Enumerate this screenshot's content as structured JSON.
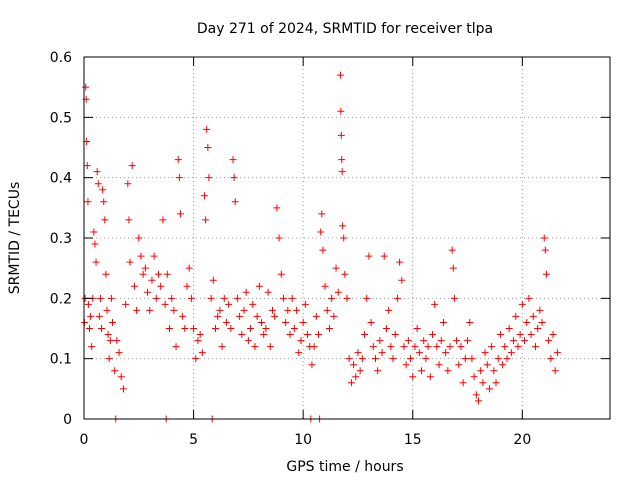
{
  "chart_data": {
    "type": "scatter",
    "title": "Day 271 of 2024, SRMTID for receiver tlpa",
    "xlabel": "GPS time / hours",
    "ylabel": "SRMTID / TECUs",
    "xlim": [
      0,
      24
    ],
    "ylim": [
      0,
      0.6
    ],
    "xticks": [
      0,
      5,
      10,
      15,
      20
    ],
    "xtick_labels": [
      "0",
      "5",
      "10",
      "15",
      "20"
    ],
    "yticks": [
      0,
      0.1,
      0.2,
      0.3,
      0.4,
      0.5,
      0.6
    ],
    "ytick_labels": [
      "0",
      "0.1",
      "0.2",
      "0.3",
      "0.4",
      "0.5",
      "0.6"
    ],
    "grid": true,
    "marker": "+",
    "color": "#ff0000",
    "series": [
      {
        "name": "SRMTID",
        "points": [
          [
            0.02,
            0.16
          ],
          [
            0.05,
            0.2
          ],
          [
            0.08,
            0.55
          ],
          [
            0.1,
            0.53
          ],
          [
            0.12,
            0.46
          ],
          [
            0.15,
            0.42
          ],
          [
            0.18,
            0.36
          ],
          [
            0.2,
            0.19
          ],
          [
            0.25,
            0.15
          ],
          [
            0.3,
            0.17
          ],
          [
            0.35,
            0.12
          ],
          [
            0.4,
            0.2
          ],
          [
            0.45,
            0.31
          ],
          [
            0.5,
            0.29
          ],
          [
            0.55,
            0.26
          ],
          [
            0.6,
            0.41
          ],
          [
            0.65,
            0.39
          ],
          [
            0.7,
            0.17
          ],
          [
            0.75,
            0.2
          ],
          [
            0.8,
            0.15
          ],
          [
            0.85,
            0.38
          ],
          [
            0.9,
            0.36
          ],
          [
            0.95,
            0.33
          ],
          [
            1.0,
            0.24
          ],
          [
            1.05,
            0.18
          ],
          [
            1.1,
            0.14
          ],
          [
            1.15,
            0.1
          ],
          [
            1.2,
            0.13
          ],
          [
            1.25,
            0.2
          ],
          [
            1.3,
            0.16
          ],
          [
            1.4,
            0.08
          ],
          [
            1.45,
            0.0
          ],
          [
            1.5,
            0.13
          ],
          [
            1.6,
            0.11
          ],
          [
            1.7,
            0.07
          ],
          [
            1.8,
            0.05
          ],
          [
            1.9,
            0.19
          ],
          [
            2.0,
            0.39
          ],
          [
            2.05,
            0.33
          ],
          [
            2.1,
            0.26
          ],
          [
            2.2,
            0.42
          ],
          [
            2.3,
            0.22
          ],
          [
            2.4,
            0.18
          ],
          [
            2.5,
            0.3
          ],
          [
            2.6,
            0.27
          ],
          [
            2.7,
            0.24
          ],
          [
            2.8,
            0.25
          ],
          [
            2.9,
            0.21
          ],
          [
            3.0,
            0.18
          ],
          [
            3.1,
            0.23
          ],
          [
            3.2,
            0.27
          ],
          [
            3.3,
            0.2
          ],
          [
            3.4,
            0.24
          ],
          [
            3.5,
            0.22
          ],
          [
            3.6,
            0.33
          ],
          [
            3.7,
            0.19
          ],
          [
            3.75,
            0.0
          ],
          [
            3.8,
            0.24
          ],
          [
            3.9,
            0.15
          ],
          [
            4.0,
            0.2
          ],
          [
            4.1,
            0.18
          ],
          [
            4.2,
            0.12
          ],
          [
            4.3,
            0.43
          ],
          [
            4.35,
            0.4
          ],
          [
            4.4,
            0.34
          ],
          [
            4.5,
            0.17
          ],
          [
            4.6,
            0.15
          ],
          [
            4.7,
            0.22
          ],
          [
            4.8,
            0.25
          ],
          [
            4.9,
            0.2
          ],
          [
            5.0,
            0.15
          ],
          [
            5.1,
            0.1
          ],
          [
            5.2,
            0.13
          ],
          [
            5.3,
            0.14
          ],
          [
            5.4,
            0.11
          ],
          [
            5.5,
            0.37
          ],
          [
            5.55,
            0.33
          ],
          [
            5.6,
            0.48
          ],
          [
            5.65,
            0.45
          ],
          [
            5.7,
            0.4
          ],
          [
            5.8,
            0.2
          ],
          [
            5.85,
            0.0
          ],
          [
            5.9,
            0.23
          ],
          [
            6.0,
            0.15
          ],
          [
            6.1,
            0.17
          ],
          [
            6.2,
            0.18
          ],
          [
            6.3,
            0.12
          ],
          [
            6.4,
            0.2
          ],
          [
            6.5,
            0.16
          ],
          [
            6.6,
            0.19
          ],
          [
            6.7,
            0.15
          ],
          [
            6.8,
            0.43
          ],
          [
            6.85,
            0.4
          ],
          [
            6.9,
            0.36
          ],
          [
            7.0,
            0.2
          ],
          [
            7.1,
            0.17
          ],
          [
            7.2,
            0.14
          ],
          [
            7.3,
            0.18
          ],
          [
            7.4,
            0.21
          ],
          [
            7.5,
            0.13
          ],
          [
            7.6,
            0.15
          ],
          [
            7.7,
            0.19
          ],
          [
            7.8,
            0.12
          ],
          [
            7.9,
            0.17
          ],
          [
            8.0,
            0.22
          ],
          [
            8.1,
            0.16
          ],
          [
            8.2,
            0.14
          ],
          [
            8.3,
            0.15
          ],
          [
            8.4,
            0.21
          ],
          [
            8.5,
            0.12
          ],
          [
            8.6,
            0.18
          ],
          [
            8.7,
            0.17
          ],
          [
            8.8,
            0.35
          ],
          [
            8.9,
            0.3
          ],
          [
            9.0,
            0.24
          ],
          [
            9.1,
            0.2
          ],
          [
            9.2,
            0.16
          ],
          [
            9.3,
            0.18
          ],
          [
            9.4,
            0.14
          ],
          [
            9.5,
            0.2
          ],
          [
            9.6,
            0.15
          ],
          [
            9.7,
            0.18
          ],
          [
            9.8,
            0.11
          ],
          [
            9.9,
            0.13
          ],
          [
            10.0,
            0.16
          ],
          [
            10.1,
            0.19
          ],
          [
            10.2,
            0.14
          ],
          [
            10.3,
            0.12
          ],
          [
            10.35,
            0.0
          ],
          [
            10.4,
            0.09
          ],
          [
            10.5,
            0.12
          ],
          [
            10.6,
            0.17
          ],
          [
            10.7,
            0.14
          ],
          [
            10.75,
            0.0
          ],
          [
            10.8,
            0.31
          ],
          [
            10.85,
            0.34
          ],
          [
            10.9,
            0.28
          ],
          [
            11.0,
            0.22
          ],
          [
            11.1,
            0.18
          ],
          [
            11.2,
            0.15
          ],
          [
            11.3,
            0.2
          ],
          [
            11.4,
            0.17
          ],
          [
            11.5,
            0.25
          ],
          [
            11.6,
            0.21
          ],
          [
            11.7,
            0.57
          ],
          [
            11.72,
            0.51
          ],
          [
            11.74,
            0.47
          ],
          [
            11.76,
            0.43
          ],
          [
            11.78,
            0.41
          ],
          [
            11.8,
            0.32
          ],
          [
            11.85,
            0.3
          ],
          [
            11.9,
            0.24
          ],
          [
            12.0,
            0.2
          ],
          [
            12.1,
            0.1
          ],
          [
            12.2,
            0.06
          ],
          [
            12.3,
            0.09
          ],
          [
            12.4,
            0.07
          ],
          [
            12.5,
            0.11
          ],
          [
            12.6,
            0.08
          ],
          [
            12.7,
            0.1
          ],
          [
            12.8,
            0.14
          ],
          [
            12.9,
            0.2
          ],
          [
            13.0,
            0.27
          ],
          [
            13.1,
            0.16
          ],
          [
            13.2,
            0.12
          ],
          [
            13.3,
            0.1
          ],
          [
            13.4,
            0.08
          ],
          [
            13.5,
            0.13
          ],
          [
            13.6,
            0.11
          ],
          [
            13.7,
            0.27
          ],
          [
            13.8,
            0.15
          ],
          [
            13.9,
            0.18
          ],
          [
            14.0,
            0.12
          ],
          [
            14.1,
            0.1
          ],
          [
            14.2,
            0.14
          ],
          [
            14.3,
            0.2
          ],
          [
            14.4,
            0.26
          ],
          [
            14.5,
            0.23
          ],
          [
            14.6,
            0.12
          ],
          [
            14.7,
            0.09
          ],
          [
            14.8,
            0.13
          ],
          [
            14.9,
            0.1
          ],
          [
            15.0,
            0.07
          ],
          [
            15.1,
            0.12
          ],
          [
            15.2,
            0.15
          ],
          [
            15.3,
            0.11
          ],
          [
            15.4,
            0.08
          ],
          [
            15.5,
            0.13
          ],
          [
            15.6,
            0.1
          ],
          [
            15.7,
            0.12
          ],
          [
            15.8,
            0.07
          ],
          [
            15.9,
            0.14
          ],
          [
            16.0,
            0.19
          ],
          [
            16.1,
            0.12
          ],
          [
            16.2,
            0.09
          ],
          [
            16.3,
            0.13
          ],
          [
            16.4,
            0.16
          ],
          [
            16.5,
            0.11
          ],
          [
            16.6,
            0.08
          ],
          [
            16.7,
            0.12
          ],
          [
            16.8,
            0.28
          ],
          [
            16.85,
            0.25
          ],
          [
            16.9,
            0.2
          ],
          [
            17.0,
            0.13
          ],
          [
            17.1,
            0.09
          ],
          [
            17.2,
            0.12
          ],
          [
            17.3,
            0.06
          ],
          [
            17.4,
            0.1
          ],
          [
            17.5,
            0.13
          ],
          [
            17.6,
            0.16
          ],
          [
            17.7,
            0.1
          ],
          [
            17.8,
            0.07
          ],
          [
            17.9,
            0.04
          ],
          [
            18.0,
            0.03
          ],
          [
            18.1,
            0.08
          ],
          [
            18.2,
            0.06
          ],
          [
            18.3,
            0.11
          ],
          [
            18.4,
            0.09
          ],
          [
            18.5,
            0.05
          ],
          [
            18.6,
            0.12
          ],
          [
            18.7,
            0.08
          ],
          [
            18.8,
            0.06
          ],
          [
            18.9,
            0.1
          ],
          [
            19.0,
            0.14
          ],
          [
            19.1,
            0.09
          ],
          [
            19.2,
            0.12
          ],
          [
            19.3,
            0.1
          ],
          [
            19.4,
            0.15
          ],
          [
            19.5,
            0.11
          ],
          [
            19.6,
            0.13
          ],
          [
            19.7,
            0.17
          ],
          [
            19.8,
            0.12
          ],
          [
            19.9,
            0.14
          ],
          [
            20.0,
            0.19
          ],
          [
            20.1,
            0.13
          ],
          [
            20.2,
            0.16
          ],
          [
            20.3,
            0.2
          ],
          [
            20.4,
            0.14
          ],
          [
            20.5,
            0.17
          ],
          [
            20.6,
            0.12
          ],
          [
            20.7,
            0.15
          ],
          [
            20.8,
            0.18
          ],
          [
            20.9,
            0.16
          ],
          [
            21.0,
            0.3
          ],
          [
            21.05,
            0.28
          ],
          [
            21.1,
            0.24
          ],
          [
            21.2,
            0.13
          ],
          [
            21.3,
            0.1
          ],
          [
            21.4,
            0.14
          ],
          [
            21.5,
            0.08
          ],
          [
            21.6,
            0.11
          ]
        ]
      }
    ]
  }
}
